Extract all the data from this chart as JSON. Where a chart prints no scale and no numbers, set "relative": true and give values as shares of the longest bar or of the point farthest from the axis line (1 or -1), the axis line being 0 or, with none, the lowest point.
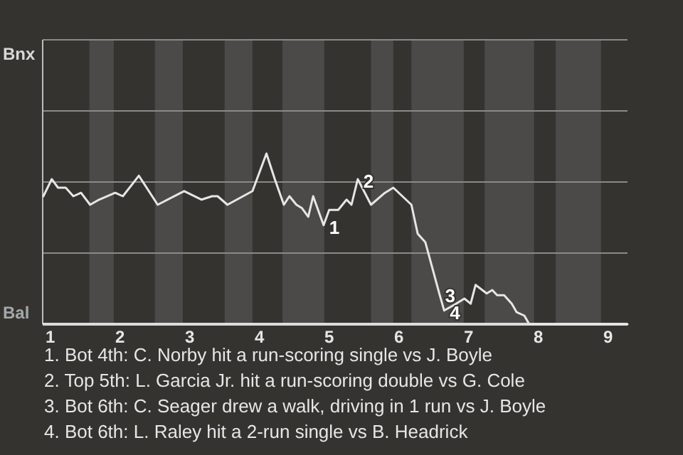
{
  "chart_data": {
    "type": "line",
    "relative": true,
    "x": [
      0.9,
      1.02,
      1.11,
      1.22,
      1.33,
      1.44,
      1.57,
      1.7,
      1.93,
      2.04,
      2.27,
      2.54,
      2.92,
      3.17,
      3.32,
      3.4,
      3.54,
      3.9,
      4.1,
      4.22,
      4.35,
      4.43,
      4.53,
      4.61,
      4.7,
      4.77,
      4.92,
      5,
      5.13,
      5.25,
      5.32,
      5.41,
      5.6,
      5.8,
      5.92,
      6.18,
      6.27,
      6.38,
      6.58,
      6.65,
      6.82,
      6.94,
      7.03,
      7.1,
      7.26,
      7.34,
      7.41,
      7.51,
      7.62,
      7.69,
      7.8,
      7.87,
      8,
      9.28
    ],
    "series": [
      {
        "color": "#e6e6e6",
        "values": [
          0.75,
          0.85,
          0.8,
          0.8,
          0.75,
          0.77,
          0.7,
          0.73,
          0.77,
          0.75,
          0.87,
          0.7,
          0.78,
          0.73,
          0.75,
          0.75,
          0.7,
          0.78,
          1,
          0.85,
          0.7,
          0.75,
          0.7,
          0.68,
          0.63,
          0.75,
          0.58,
          0.67,
          0.67,
          0.73,
          0.7,
          0.85,
          0.7,
          0.77,
          0.8,
          0.7,
          0.53,
          0.48,
          0.18,
          0.08,
          0.12,
          0.15,
          0.12,
          0.23,
          0.18,
          0.2,
          0.17,
          0.17,
          0.12,
          0.07,
          0.05,
          0,
          0,
          0
        ]
      }
    ],
    "xlim": [
      0.89,
      9.28
    ],
    "xticks": [
      1,
      2,
      3,
      4,
      5,
      6,
      7,
      8,
      9
    ],
    "ref_lines": [
      {
        "axis": "y",
        "value": 0.417,
        "color": "#8a8986"
      },
      {
        "axis": "y",
        "value": 0.833,
        "color": "#8a8986"
      },
      {
        "axis": "y",
        "value": 1.25,
        "color": "#8a8986"
      },
      {
        "axis": "y",
        "value": 1.667,
        "color": "#8a8986"
      }
    ],
    "marker": "none",
    "line_style": "solid",
    "bands": [
      {
        "axis": "x",
        "from": 1.56,
        "to": 1.91,
        "color": "#4b4a48"
      },
      {
        "axis": "x",
        "from": 2.5,
        "to": 2.9,
        "color": "#4b4a48"
      },
      {
        "axis": "x",
        "from": 3.5,
        "to": 3.9,
        "color": "#4b4a48"
      },
      {
        "axis": "x",
        "from": 4.33,
        "to": 4.93,
        "color": "#4b4a48"
      },
      {
        "axis": "x",
        "from": 5.6,
        "to": 5.92,
        "color": "#4b4a48"
      },
      {
        "axis": "x",
        "from": 6.18,
        "to": 6.93,
        "color": "#4b4a48"
      },
      {
        "axis": "x",
        "from": 7.23,
        "to": 7.94,
        "color": "#4b4a48"
      },
      {
        "axis": "x",
        "from": 8.25,
        "to": 8.9,
        "color": "#4b4a48"
      }
    ],
    "annotations": [
      "Bnx",
      "Bal",
      {
        "text": "1",
        "x": 4.92,
        "y": 0.58
      },
      {
        "text": "2",
        "x": 5.41,
        "y": 0.85
      },
      {
        "text": "3",
        "x": 6.58,
        "y": 0.18
      },
      {
        "text": "4",
        "x": 6.65,
        "y": 0.08
      },
      "1. Bot 4th: C. Norby hit a run-scoring single vs J. Boyle",
      "2. Top 5th: L. Garcia Jr. hit a run-scoring double vs G. Cole",
      "3. Bot 6th: C. Seager drew a walk, driving in 1 run vs J. Boyle",
      "4. Bot 6th: L. Raley hit a 2-run single vs B. Headrick"
    ]
  }
}
